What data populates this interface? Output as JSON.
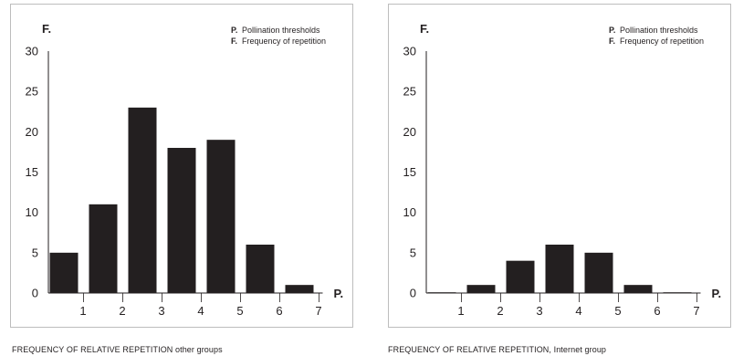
{
  "legend": [
    {
      "key": "P.",
      "text": "Pollination thresholds"
    },
    {
      "key": "F.",
      "text": "Frequency of repetition"
    }
  ],
  "chart_data": [
    {
      "type": "bar",
      "caption": "FREQUENCY OF RELATIVE REPETITION other groups",
      "ylabel": "F.",
      "xlabel": "P.",
      "categories": [
        "1",
        "2",
        "3",
        "4",
        "5",
        "6",
        "7"
      ],
      "values": [
        5,
        11,
        23,
        18,
        19,
        6,
        1
      ],
      "ylim": [
        0,
        30
      ],
      "yticks": [
        0,
        5,
        10,
        15,
        20,
        25,
        30
      ],
      "grid": false,
      "legend_position": "top-right",
      "bar_color": "#231f20"
    },
    {
      "type": "bar",
      "caption": "FREQUENCY OF RELATIVE REPETITION, Internet group",
      "ylabel": "F.",
      "xlabel": "P.",
      "categories": [
        "1",
        "2",
        "3",
        "4",
        "5",
        "6",
        "7"
      ],
      "values": [
        0,
        1,
        4,
        6,
        5,
        1,
        0
      ],
      "ylim": [
        0,
        30
      ],
      "yticks": [
        0,
        5,
        10,
        15,
        20,
        25,
        30
      ],
      "grid": false,
      "legend_position": "top-right",
      "bar_color": "#231f20"
    }
  ]
}
